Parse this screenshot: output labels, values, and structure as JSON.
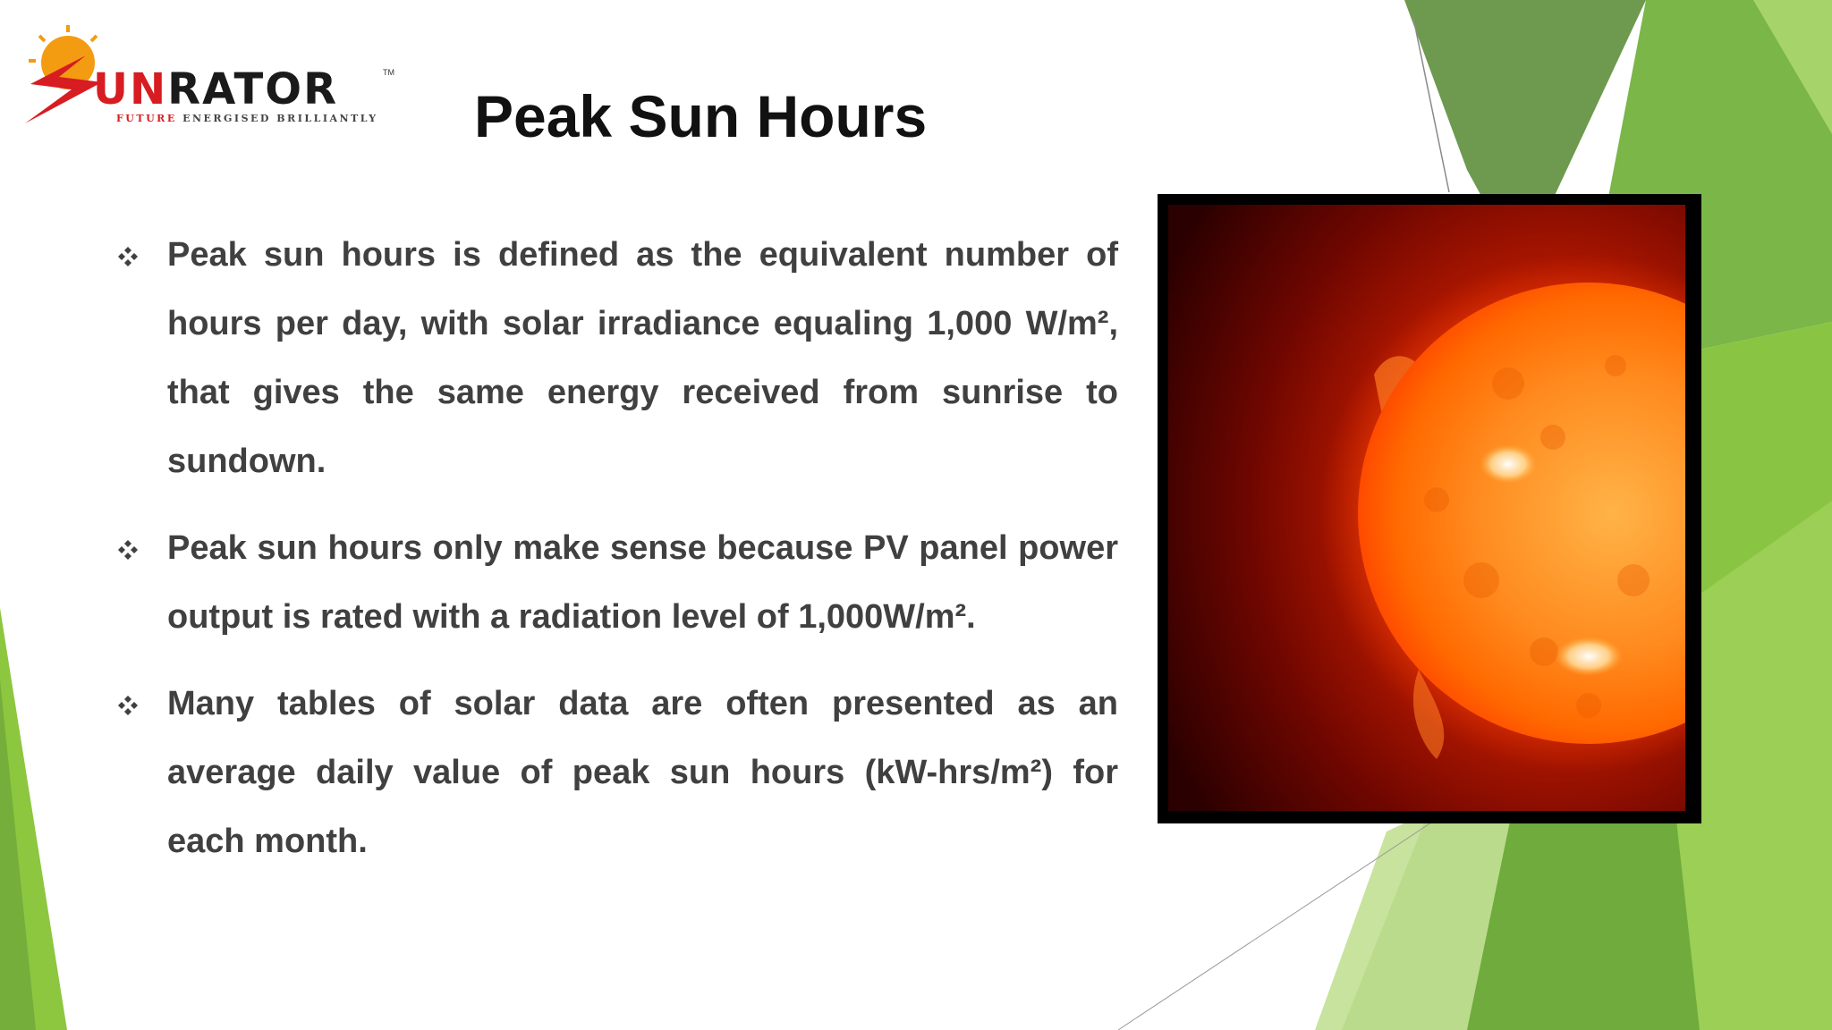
{
  "logo": {
    "brand_first": "S",
    "brand_red": "UN",
    "brand_rest": "RATOR",
    "tagline_red": "FUTURE",
    "tagline_rest": "ENERGISED BRILLIANTLY",
    "trademark": "TM",
    "colors": {
      "red": "#d71c22",
      "orange": "#f39c12",
      "dark": "#1a1a1a"
    }
  },
  "slide": {
    "title": "Peak Sun Hours",
    "bullet_icon": "four-diamond-bullet-icon",
    "bullets": [
      "Peak sun hours is defined as the equivalent number of hours per day, with solar irradiance equaling 1,000 W/m², that gives the same energy received from sunrise to sundown.",
      "Peak sun hours only make sense because PV panel power output is rated with a radiation level of 1,000W/m².",
      "Many tables of solar data are often presented as an average daily value of peak sun hours (kW-hrs/m²) for each month."
    ]
  },
  "image": {
    "subject": "sun-photo"
  },
  "theme": {
    "accent_green": "#7ab648",
    "dark_green": "#5c8f32",
    "light_green": "#a6d36a",
    "text": "#404040"
  }
}
